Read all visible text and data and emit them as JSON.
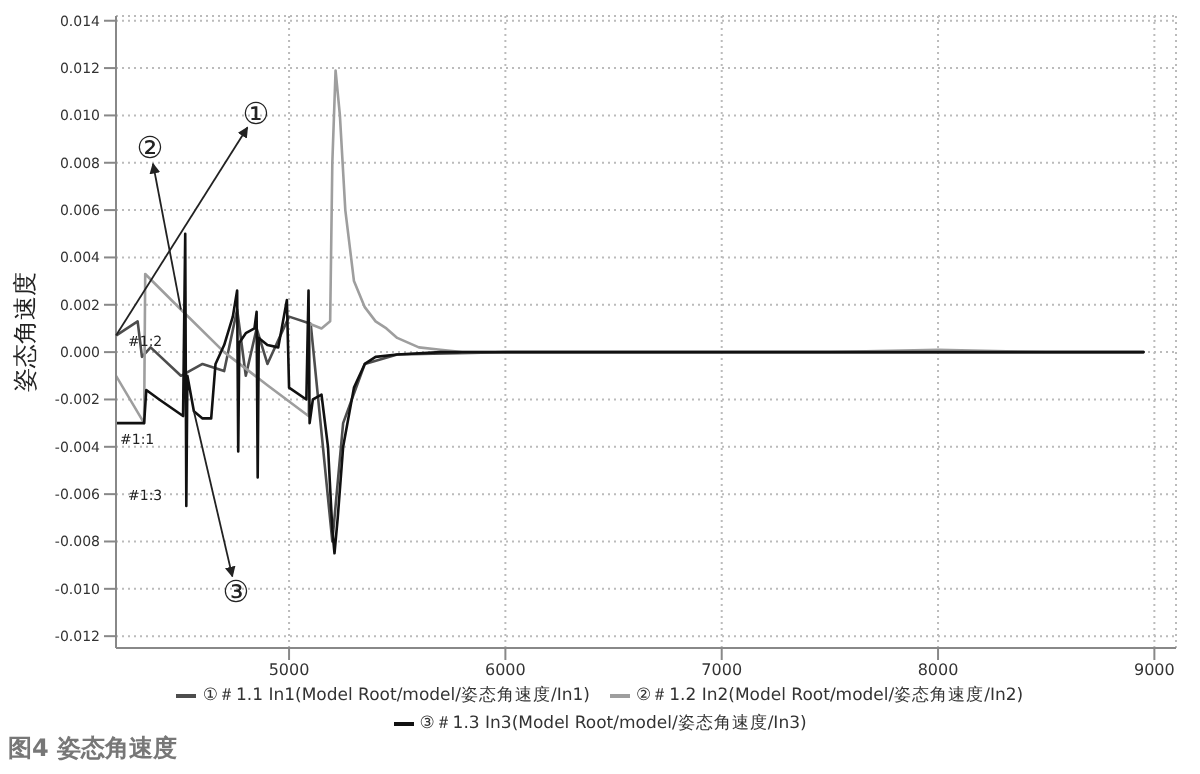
{
  "chart_data": {
    "type": "line",
    "title": "图4  姿态角速度",
    "ylabel": "姿态角速度",
    "annotations": [
      {
        "text": "①",
        "x": 4200,
        "y": 0.0007
      },
      {
        "text": "②",
        "x": 4500,
        "y": 0.0018
      },
      {
        "text": "③",
        "x": 4560,
        "y": -0.0025
      },
      "#1:2",
      "#1:1",
      "#1:3"
    ],
    "xlim": [
      4200,
      9100
    ],
    "xticks": [
      5000,
      6000,
      7000,
      8000,
      9000
    ],
    "ylim": [
      -0.0125,
      0.0142
    ],
    "yticks": [
      {
        "value": -0.012,
        "label": "-0.012"
      },
      {
        "value": -0.01,
        "label": "-0.010"
      },
      {
        "value": -0.008,
        "label": "-0.008"
      },
      {
        "value": -0.006,
        "label": "-0.006"
      },
      {
        "value": -0.004,
        "label": "-0.004"
      },
      {
        "value": -0.002,
        "label": "-0.002"
      },
      {
        "value": 0,
        "label": "0.000"
      },
      {
        "value": 0.002,
        "label": "0.002"
      },
      {
        "value": 0.004,
        "label": "0.004"
      },
      {
        "value": 0.006,
        "label": "0.006"
      },
      {
        "value": 0.008,
        "label": "0.008"
      },
      {
        "value": 0.01,
        "label": "0.010"
      },
      {
        "value": 0.012,
        "label": "0.012"
      },
      {
        "value": 0.014,
        "label": "0.014"
      }
    ],
    "grid": true,
    "legend": "bottom",
    "marker": "none",
    "line_style": "solid",
    "series": [
      {
        "name": "①＃1.1 In1(Model Root/model/姿态角速度/In1)",
        "color": "#4d4d4d",
        "x": [
          4200,
          4300,
          4320,
          4360,
          4500,
          4600,
          4700,
          4760,
          4800,
          4850,
          4900,
          5000,
          5100,
          5200,
          5250,
          5350,
          5500,
          6000,
          7000,
          8000,
          8950
        ],
        "values": [
          0.0007,
          0.0013,
          -0.0002,
          0.0002,
          -0.001,
          -0.0005,
          -0.0008,
          0.0018,
          -0.001,
          0.001,
          -0.0005,
          0.0015,
          0.0012,
          -0.008,
          -0.003,
          -0.0005,
          -0.0001,
          0,
          0,
          0,
          0
        ]
      },
      {
        "name": "②＃1.2 In2(Model Root/model/姿态角速度/In2)",
        "color": "#9e9e9e",
        "x": [
          4200,
          4330,
          4335,
          4500,
          4700,
          4900,
          5090,
          5095,
          5150,
          5190,
          5200,
          5215,
          5235,
          5260,
          5300,
          5350,
          5400,
          5450,
          5500,
          5600,
          5700,
          5800,
          6000,
          6500,
          7000,
          7500,
          8000,
          8500,
          8950
        ],
        "values": [
          -0.001,
          -0.003,
          0.0033,
          0.0018,
          0,
          -0.0014,
          -0.0027,
          0.0012,
          0.001,
          0.0013,
          0.008,
          0.0119,
          0.01,
          0.006,
          0.003,
          0.0019,
          0.0013,
          0.001,
          0.0006,
          0.0002,
          0.0001,
          0,
          0,
          0,
          0,
          0,
          0.0001,
          0,
          0
        ]
      },
      {
        "name": "③＃1.3 In3(Model Root/model/姿态角速度/In3)",
        "color": "#111111",
        "x": [
          4200,
          4330,
          4340,
          4400,
          4510,
          4520,
          4525,
          4530,
          4560,
          4600,
          4640,
          4660,
          4700,
          4740,
          4760,
          4765,
          4770,
          4800,
          4840,
          4850,
          4855,
          4860,
          4900,
          4950,
          4990,
          5000,
          5080,
          5090,
          5095,
          5110,
          5150,
          5180,
          5200,
          5210,
          5225,
          5250,
          5300,
          5350,
          5400,
          5500,
          5700,
          6000,
          7000,
          8000,
          8950
        ],
        "values": [
          -0.003,
          -0.003,
          -0.0016,
          -0.002,
          -0.0027,
          0.005,
          -0.0065,
          -0.001,
          -0.0025,
          -0.0028,
          -0.0028,
          -0.0005,
          0.0003,
          0.0015,
          0.0026,
          -0.0042,
          0.0004,
          0.0008,
          0.001,
          0.0017,
          -0.0053,
          0.0006,
          0.0003,
          0.0002,
          0.0022,
          -0.0015,
          -0.002,
          0.0026,
          -0.003,
          -0.002,
          -0.0018,
          -0.004,
          -0.0075,
          -0.0085,
          -0.007,
          -0.004,
          -0.0015,
          -0.0005,
          -0.0002,
          -0.0001,
          0,
          0,
          0,
          0,
          0
        ]
      }
    ]
  }
}
